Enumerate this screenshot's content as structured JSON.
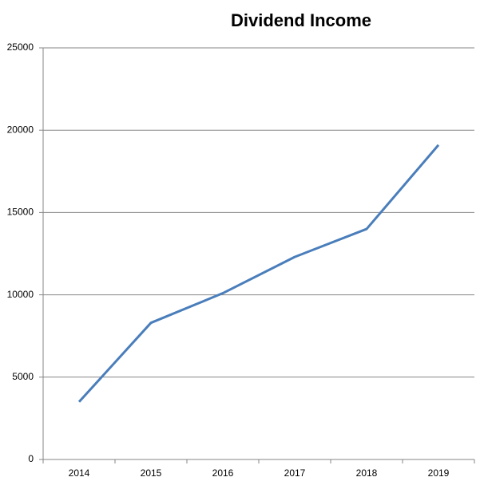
{
  "chart_data": {
    "type": "line",
    "title": "Dividend Income",
    "categories": [
      "2014",
      "2015",
      "2016",
      "2017",
      "2018",
      "2019"
    ],
    "series": [
      {
        "name": "Dividend Income",
        "color": "#4a7ebb",
        "values": [
          3500,
          8300,
          10100,
          12300,
          14000,
          19100
        ]
      }
    ],
    "ylim": [
      0,
      25000
    ],
    "yticks": [
      0,
      5000,
      10000,
      15000,
      20000,
      25000
    ],
    "grid": true
  }
}
